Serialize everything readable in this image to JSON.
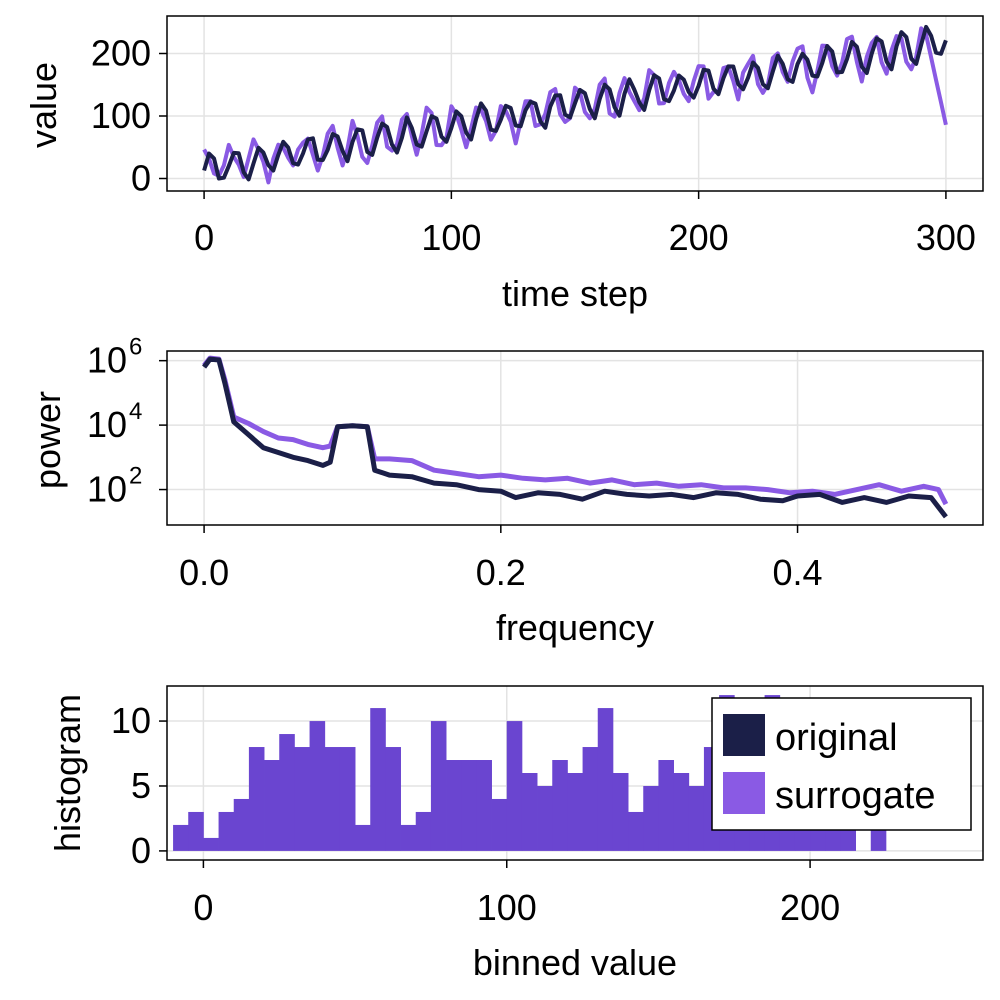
{
  "chart_data": [
    {
      "type": "line",
      "xlabel": "time step",
      "ylabel": "value",
      "xlim": [
        -15,
        315
      ],
      "ylim": [
        -20,
        260
      ],
      "xticks": [
        0,
        100,
        200,
        300
      ],
      "xtick_labels": [
        "0",
        "100",
        "200",
        "300"
      ],
      "yticks": [
        0,
        100,
        200
      ],
      "ytick_labels": [
        "0",
        "100",
        "200"
      ],
      "grid": true,
      "series": [
        {
          "name": "original",
          "color": "#1b1f48",
          "trend": "rises from ~20 at t=0 to ~220 at t=300 with a ~10-step oscillation of amplitude ~25"
        },
        {
          "name": "surrogate",
          "color": "#8a5ae4",
          "trend": "follows the same rise with noisier oscillation, ends dropping to ~80 at t=300"
        }
      ]
    },
    {
      "type": "line",
      "xlabel": "frequency",
      "ylabel": "power",
      "yscale": "log",
      "xlim": [
        -0.025,
        0.525
      ],
      "ylim_log10": [
        0.9,
        6.3
      ],
      "xticks": [
        0.0,
        0.2,
        0.4
      ],
      "xtick_labels": [
        "0.0",
        "0.2",
        "0.4"
      ],
      "yticks_log10": [
        2,
        4,
        6
      ],
      "ytick_base": "10",
      "ytick_exponents": [
        "2",
        "4",
        "6"
      ],
      "grid": true,
      "series": [
        {
          "name": "original",
          "color": "#1b1f48",
          "points": [
            [
              0.0,
              5.8
            ],
            [
              0.004,
              6.05
            ],
            [
              0.01,
              6.02
            ],
            [
              0.014,
              5.3
            ],
            [
              0.02,
              4.1
            ],
            [
              0.03,
              3.7
            ],
            [
              0.04,
              3.3
            ],
            [
              0.05,
              3.15
            ],
            [
              0.06,
              3.0
            ],
            [
              0.07,
              2.9
            ],
            [
              0.08,
              2.75
            ],
            [
              0.085,
              2.85
            ],
            [
              0.09,
              3.95
            ],
            [
              0.1,
              3.98
            ],
            [
              0.11,
              3.95
            ],
            [
              0.115,
              2.6
            ],
            [
              0.125,
              2.45
            ],
            [
              0.14,
              2.4
            ],
            [
              0.155,
              2.2
            ],
            [
              0.17,
              2.15
            ],
            [
              0.185,
              2.0
            ],
            [
              0.2,
              1.95
            ],
            [
              0.21,
              1.75
            ],
            [
              0.225,
              1.9
            ],
            [
              0.24,
              1.85
            ],
            [
              0.255,
              1.7
            ],
            [
              0.27,
              1.95
            ],
            [
              0.285,
              1.85
            ],
            [
              0.3,
              1.8
            ],
            [
              0.315,
              1.85
            ],
            [
              0.33,
              1.75
            ],
            [
              0.345,
              1.9
            ],
            [
              0.36,
              1.85
            ],
            [
              0.375,
              1.7
            ],
            [
              0.39,
              1.65
            ],
            [
              0.4,
              1.8
            ],
            [
              0.415,
              1.85
            ],
            [
              0.43,
              1.6
            ],
            [
              0.445,
              1.75
            ],
            [
              0.46,
              1.6
            ],
            [
              0.475,
              1.8
            ],
            [
              0.49,
              1.75
            ],
            [
              0.5,
              1.15
            ]
          ]
        },
        {
          "name": "surrogate",
          "color": "#8a5ae4",
          "points": [
            [
              0.0,
              5.85
            ],
            [
              0.004,
              6.08
            ],
            [
              0.01,
              6.05
            ],
            [
              0.014,
              5.4
            ],
            [
              0.02,
              4.25
            ],
            [
              0.03,
              4.05
            ],
            [
              0.04,
              3.8
            ],
            [
              0.05,
              3.6
            ],
            [
              0.06,
              3.55
            ],
            [
              0.07,
              3.4
            ],
            [
              0.08,
              3.3
            ],
            [
              0.085,
              3.35
            ],
            [
              0.09,
              3.95
            ],
            [
              0.1,
              3.98
            ],
            [
              0.11,
              3.95
            ],
            [
              0.115,
              2.95
            ],
            [
              0.125,
              2.95
            ],
            [
              0.14,
              2.9
            ],
            [
              0.155,
              2.6
            ],
            [
              0.17,
              2.5
            ],
            [
              0.185,
              2.4
            ],
            [
              0.2,
              2.45
            ],
            [
              0.215,
              2.35
            ],
            [
              0.23,
              2.3
            ],
            [
              0.245,
              2.35
            ],
            [
              0.26,
              2.2
            ],
            [
              0.275,
              2.3
            ],
            [
              0.29,
              2.15
            ],
            [
              0.305,
              2.2
            ],
            [
              0.32,
              2.1
            ],
            [
              0.335,
              2.15
            ],
            [
              0.35,
              2.05
            ],
            [
              0.365,
              2.05
            ],
            [
              0.38,
              2.0
            ],
            [
              0.395,
              1.9
            ],
            [
              0.41,
              1.95
            ],
            [
              0.425,
              1.85
            ],
            [
              0.44,
              2.0
            ],
            [
              0.455,
              2.15
            ],
            [
              0.47,
              1.95
            ],
            [
              0.485,
              2.1
            ],
            [
              0.495,
              2.0
            ],
            [
              0.5,
              1.55
            ]
          ]
        }
      ]
    },
    {
      "type": "bar",
      "xlabel": "binned value",
      "ylabel": "histogram",
      "xlim": [
        -12,
        257
      ],
      "ylim": [
        -0.7,
        12.7
      ],
      "xticks": [
        0,
        100,
        200
      ],
      "xtick_labels": [
        "0",
        "100",
        "200"
      ],
      "yticks": [
        0,
        5,
        10
      ],
      "ytick_labels": [
        "0",
        "5",
        "10"
      ],
      "grid": true,
      "legend_position": "top-right",
      "legend": [
        {
          "label": "original",
          "color": "#1b1f48"
        },
        {
          "label": "surrogate",
          "color": "#8a5ae4"
        }
      ],
      "bar_color": "#6a45d0",
      "bin_start": -10,
      "bin_width": 5,
      "values": [
        2,
        3,
        1,
        3,
        4,
        8,
        7,
        9,
        8,
        10,
        8,
        8,
        2,
        11,
        8,
        2,
        3,
        10,
        7,
        7,
        7,
        4,
        10,
        6,
        5,
        7,
        6,
        8,
        11,
        6,
        3,
        5,
        7,
        6,
        5,
        8,
        12,
        3,
        4,
        12,
        2,
        6,
        5,
        5,
        3,
        0,
        2
      ]
    }
  ]
}
